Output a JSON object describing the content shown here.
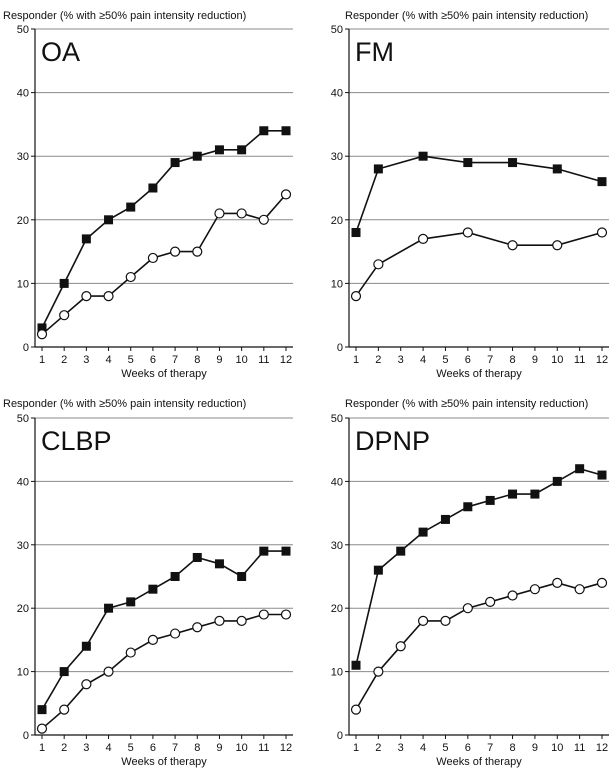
{
  "chart_data": [
    {
      "type": "line",
      "title": "OA",
      "ylabel": "Responder (% with ≥50% pain intensity reduction)",
      "xlabel": "Weeks of therapy",
      "ylim": [
        0,
        50
      ],
      "yticks": [
        0,
        10,
        20,
        30,
        40,
        50
      ],
      "x": [
        1,
        2,
        3,
        4,
        5,
        6,
        7,
        8,
        9,
        10,
        11,
        12
      ],
      "xtick_labels": [
        "1",
        "2",
        "3",
        "4",
        "5",
        "6",
        "7",
        "8",
        "9",
        "10",
        "11",
        "12"
      ],
      "grid": true,
      "series": [
        {
          "marker": "filled-square",
          "x": [
            1,
            2,
            3,
            4,
            5,
            6,
            7,
            8,
            9,
            10,
            11,
            12
          ],
          "values": [
            3,
            10,
            17,
            20,
            22,
            25,
            29,
            30,
            31,
            31,
            34,
            34
          ]
        },
        {
          "marker": "open-circle",
          "x": [
            1,
            2,
            3,
            4,
            5,
            6,
            7,
            8,
            9,
            10,
            11,
            12
          ],
          "values": [
            2,
            5,
            8,
            8,
            11,
            14,
            15,
            15,
            21,
            21,
            20,
            24
          ]
        }
      ]
    },
    {
      "type": "line",
      "title": "FM",
      "ylabel": "Responder (% with ≥50% pain intensity reduction)",
      "xlabel": "Weeks of therapy",
      "ylim": [
        0,
        50
      ],
      "yticks": [
        0,
        10,
        20,
        30,
        40,
        50
      ],
      "x": [
        1,
        2,
        3,
        4,
        5,
        6,
        7,
        8,
        9,
        10,
        11,
        12
      ],
      "xtick_labels": [
        "1",
        "2",
        "3",
        "4",
        "5",
        "6",
        "7",
        "8",
        "9",
        "10",
        "11",
        "12"
      ],
      "grid": true,
      "series": [
        {
          "marker": "filled-square",
          "x": [
            1,
            2,
            4,
            6,
            8,
            10,
            12
          ],
          "values": [
            18,
            28,
            30,
            29,
            29,
            28,
            26
          ]
        },
        {
          "marker": "open-circle",
          "x": [
            1,
            2,
            4,
            6,
            8,
            10,
            12
          ],
          "values": [
            8,
            13,
            17,
            18,
            16,
            16,
            18
          ]
        }
      ]
    },
    {
      "type": "line",
      "title": "CLBP",
      "ylabel": "Responder (% with ≥50% pain intensity reduction)",
      "xlabel": "Weeks of therapy",
      "ylim": [
        0,
        50
      ],
      "yticks": [
        0,
        10,
        20,
        30,
        40,
        50
      ],
      "x": [
        1,
        2,
        3,
        4,
        5,
        6,
        7,
        8,
        9,
        10,
        11,
        12
      ],
      "xtick_labels": [
        "1",
        "2",
        "3",
        "4",
        "5",
        "6",
        "7",
        "8",
        "9",
        "10",
        "11",
        "12"
      ],
      "grid": true,
      "series": [
        {
          "marker": "filled-square",
          "x": [
            1,
            2,
            3,
            4,
            5,
            6,
            7,
            8,
            9,
            10,
            11,
            12
          ],
          "values": [
            4,
            10,
            14,
            20,
            21,
            23,
            25,
            28,
            27,
            25,
            29,
            29
          ]
        },
        {
          "marker": "open-circle",
          "x": [
            1,
            2,
            3,
            4,
            5,
            6,
            7,
            8,
            9,
            10,
            11,
            12
          ],
          "values": [
            1,
            4,
            8,
            10,
            13,
            15,
            16,
            17,
            18,
            18,
            19,
            19
          ]
        }
      ]
    },
    {
      "type": "line",
      "title": "DPNP",
      "ylabel": "Responder (% with ≥50% pain intensity reduction)",
      "xlabel": "Weeks of therapy",
      "ylim": [
        0,
        50
      ],
      "yticks": [
        0,
        10,
        20,
        30,
        40,
        50
      ],
      "x": [
        1,
        2,
        3,
        4,
        5,
        6,
        7,
        8,
        9,
        10,
        11,
        12
      ],
      "xtick_labels": [
        "1",
        "2",
        "3",
        "4",
        "5",
        "6",
        "7",
        "8",
        "9",
        "10",
        "11",
        "12"
      ],
      "grid": true,
      "series": [
        {
          "marker": "filled-square",
          "x": [
            1,
            2,
            3,
            4,
            5,
            6,
            7,
            8,
            9,
            10,
            11,
            12
          ],
          "values": [
            11,
            26,
            29,
            32,
            34,
            36,
            37,
            38,
            38,
            40,
            42,
            41
          ]
        },
        {
          "marker": "open-circle",
          "x": [
            1,
            2,
            3,
            4,
            5,
            6,
            7,
            8,
            9,
            10,
            11,
            12
          ],
          "values": [
            4,
            10,
            14,
            18,
            18,
            20,
            21,
            22,
            23,
            24,
            23,
            24
          ]
        }
      ]
    }
  ]
}
